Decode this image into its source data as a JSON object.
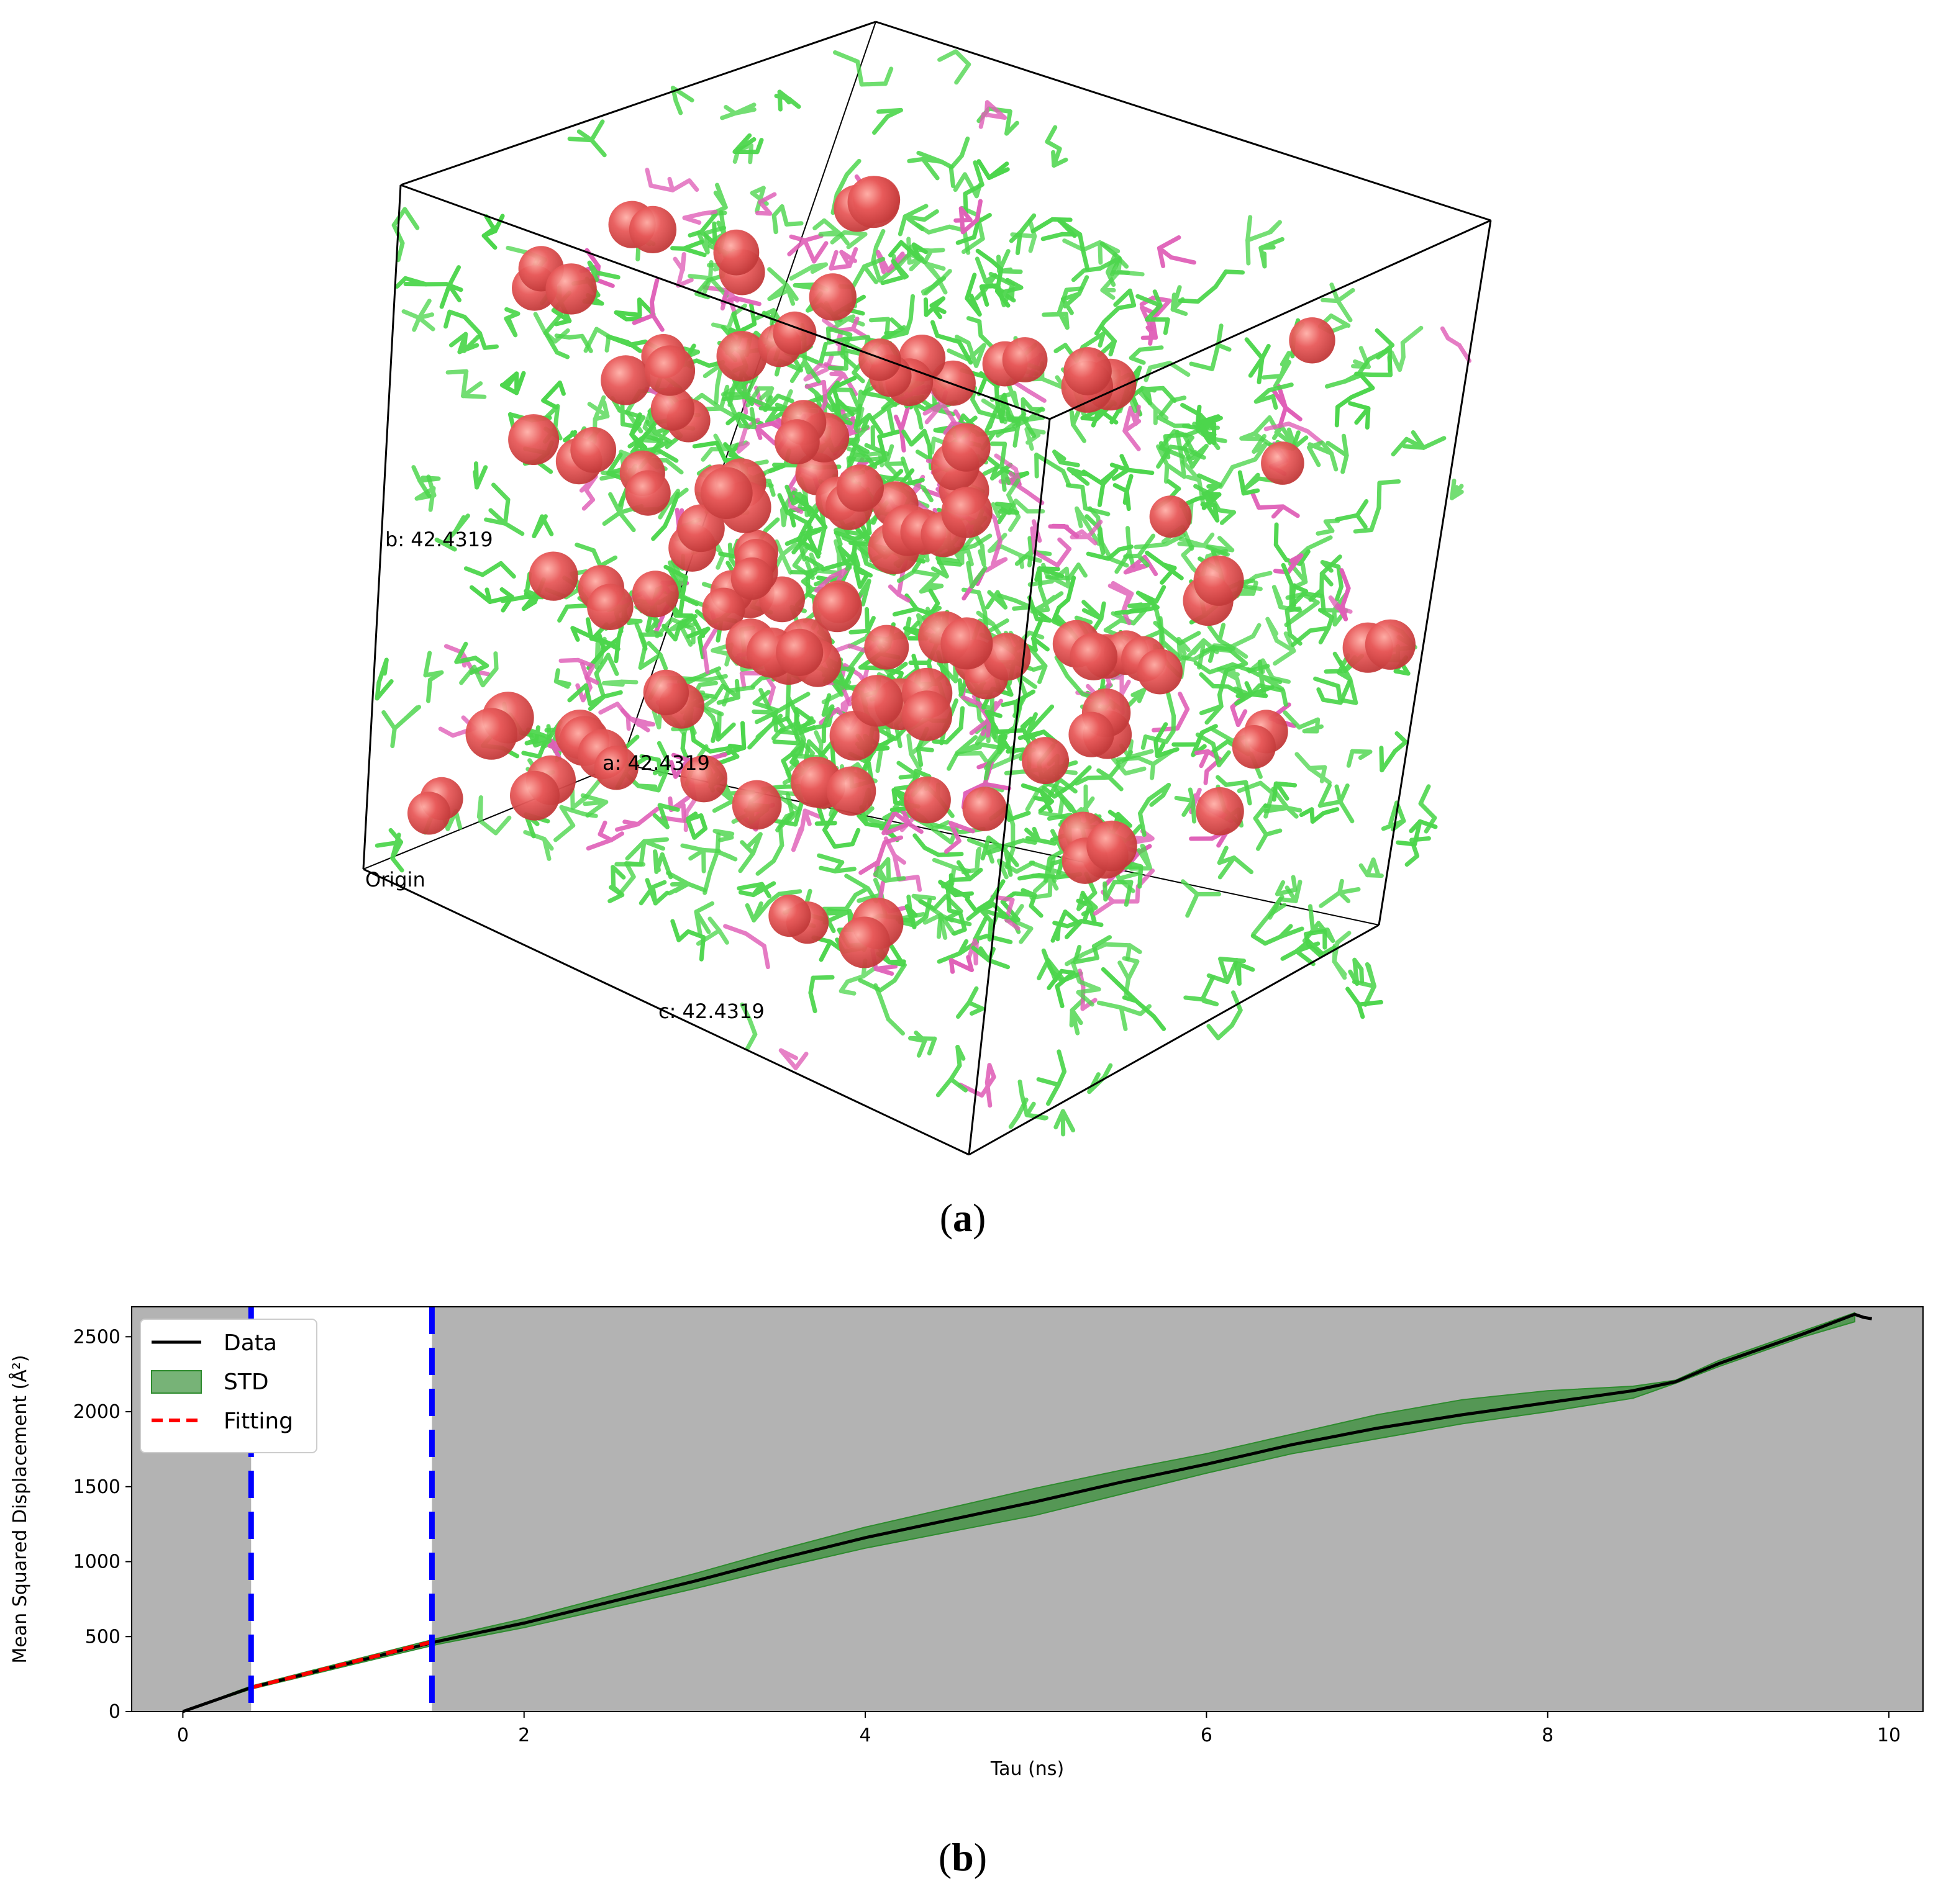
{
  "panel_a": {
    "caption_letter": "a",
    "labels": {
      "b": "b: 42.4319",
      "a": "a: 42.4319",
      "c": "c: 42.4319",
      "origin": "Origin"
    },
    "colors": {
      "molecule_primary": "#4cd64c",
      "molecule_secondary": "#e060b8",
      "ion": "#e85a5a",
      "box_edge": "#000000"
    }
  },
  "panel_b": {
    "caption_letter": "b"
  },
  "chart_data": {
    "type": "line",
    "title": "",
    "xlabel": "Tau (ns)",
    "ylabel": "Mean Squared Displacement (Å²)",
    "xlim": [
      -0.3,
      10.2
    ],
    "ylim": [
      0,
      2700
    ],
    "xticks": [
      "0",
      "2",
      "4",
      "6",
      "8",
      "10"
    ],
    "yticks": [
      "0",
      "500",
      "1000",
      "1500",
      "2000",
      "2500"
    ],
    "background_color": "#b3b3b3",
    "legend": {
      "placement": "top-left",
      "entries": [
        "Data",
        "STD",
        "Fitting"
      ]
    },
    "fit_window": {
      "start": 0.4,
      "end": 1.46
    },
    "series": [
      {
        "name": "Data",
        "color": "#000000",
        "style": "solid",
        "x": [
          0,
          0.4,
          1.0,
          1.5,
          2.0,
          2.5,
          3.0,
          3.5,
          4.0,
          4.5,
          5.0,
          5.5,
          6.0,
          6.5,
          7.0,
          7.5,
          8.0,
          8.5,
          8.75,
          9.0,
          9.5,
          9.8,
          9.85,
          9.9
        ],
        "y": [
          0,
          160,
          330,
          470,
          590,
          730,
          870,
          1020,
          1160,
          1280,
          1400,
          1530,
          1650,
          1780,
          1890,
          1980,
          2060,
          2140,
          2200,
          2320,
          2520,
          2650,
          2630,
          2620
        ]
      },
      {
        "name": "Fitting",
        "color": "#ff0000",
        "style": "dashed",
        "x": [
          0.4,
          1.46
        ],
        "y": [
          160,
          465
        ]
      }
    ],
    "std_band": {
      "name": "STD",
      "color": "#2e8b2e",
      "x": [
        0,
        0.4,
        1.0,
        1.5,
        2.0,
        2.5,
        3.0,
        3.5,
        4.0,
        4.5,
        5.0,
        5.5,
        6.0,
        6.5,
        7.0,
        7.5,
        8.0,
        8.5,
        8.75,
        9.0,
        9.5,
        9.8
      ],
      "lower": [
        0,
        150,
        315,
        450,
        560,
        690,
        820,
        960,
        1090,
        1200,
        1310,
        1450,
        1590,
        1720,
        1820,
        1920,
        2000,
        2090,
        2190,
        2300,
        2500,
        2600
      ],
      "upper": [
        0,
        170,
        345,
        490,
        620,
        770,
        920,
        1080,
        1230,
        1360,
        1490,
        1610,
        1720,
        1850,
        1980,
        2080,
        2140,
        2170,
        2210,
        2340,
        2540,
        2660
      ]
    }
  }
}
